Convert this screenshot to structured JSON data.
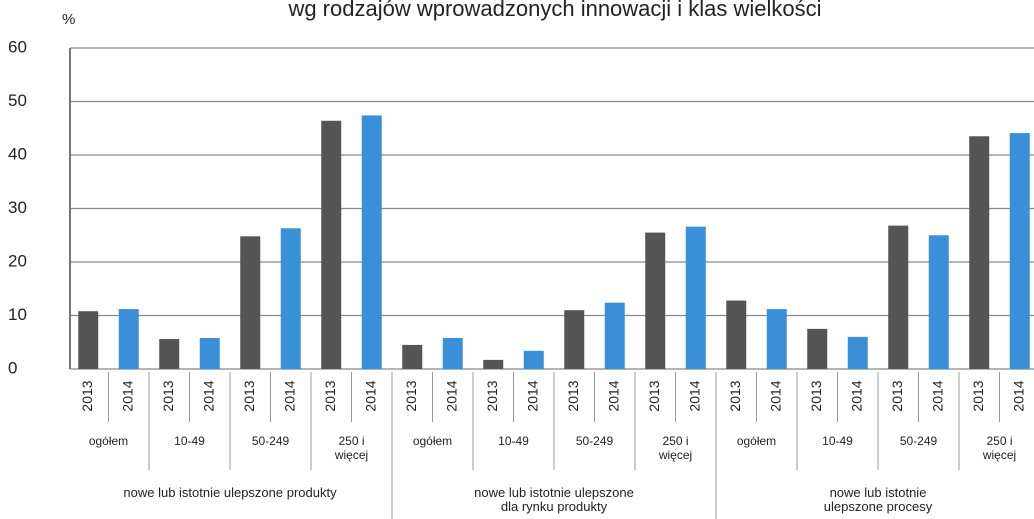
{
  "chart_data": {
    "type": "bar",
    "title": "wg rodzajów wprowadzonych innowacji i klas wielkości",
    "y_label": "%",
    "ylim": [
      0,
      60
    ],
    "yticks": [
      0,
      10,
      20,
      30,
      40,
      50,
      60
    ],
    "grid": true,
    "groups": [
      {
        "label": "nowe lub istotnie ulepszone produkty",
        "categories": [
          "ogółem",
          "10-49",
          "50-249",
          "250 i\nwięcej"
        ],
        "series": [
          {
            "name": "2013",
            "color": "#555555",
            "values": [
              10.8,
              5.6,
              24.8,
              46.4
            ]
          },
          {
            "name": "2014",
            "color": "#3a8fd9",
            "values": [
              11.2,
              5.8,
              26.3,
              47.4
            ]
          }
        ]
      },
      {
        "label": "nowe lub istotnie ulepszone\ndla rynku produkty",
        "categories": [
          "ogółem",
          "10-49",
          "50-249",
          "250 i\nwięcej"
        ],
        "series": [
          {
            "name": "2013",
            "color": "#555555",
            "values": [
              4.5,
              1.7,
              11.0,
              25.5
            ]
          },
          {
            "name": "2014",
            "color": "#3a8fd9",
            "values": [
              5.8,
              3.4,
              12.4,
              26.6
            ]
          }
        ]
      },
      {
        "label": "nowe lub istotnie ulepszone procesy",
        "categories": [
          "ogółem",
          "10-49",
          "50-249",
          "250 i\nwięcej"
        ],
        "series": [
          {
            "name": "2013",
            "color": "#555555",
            "values": [
              12.8,
              7.5,
              26.8,
              43.5
            ]
          },
          {
            "name": "2014",
            "color": "#3a8fd9",
            "values": [
              11.2,
              6.0,
              25.0,
              44.1
            ]
          }
        ]
      }
    ]
  }
}
